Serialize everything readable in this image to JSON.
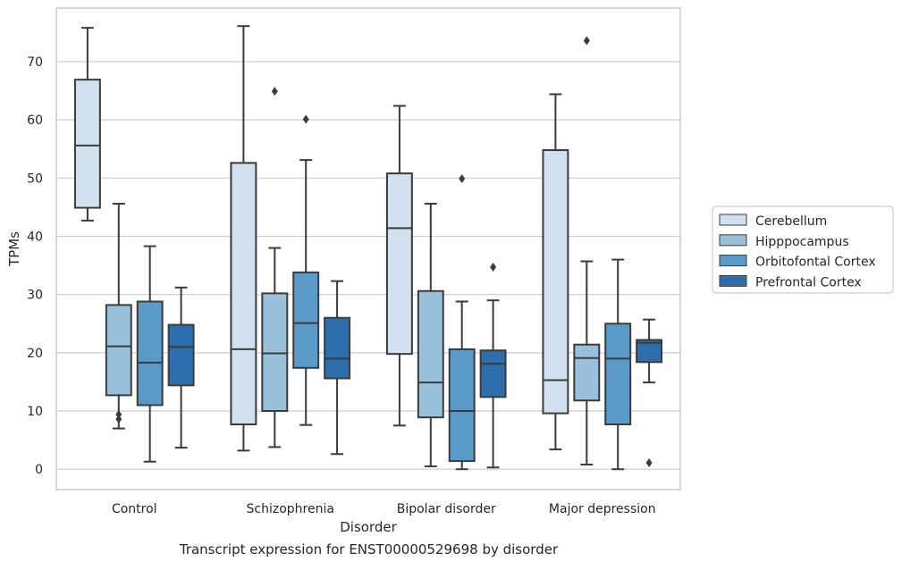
{
  "chart_data": {
    "type": "box",
    "caption": "Transcript expression for ENST00000529698 by disorder",
    "xlabel": "Disorder",
    "ylabel": "TPMs",
    "ylim": [
      -3.5,
      79.2
    ],
    "yticks": [
      0,
      10,
      20,
      30,
      40,
      50,
      60,
      70
    ],
    "grid": "horizontal",
    "legend_position": "right",
    "categories": [
      "Control",
      "Schizophrenia",
      "Bipolar disorder",
      "Major depression"
    ],
    "series": [
      {
        "name": "Cerebellum",
        "color": "#d1e1f0",
        "boxes": [
          {
            "whisker_low": 42.7,
            "q1": 44.9,
            "median": 55.6,
            "q3": 66.9,
            "whisker_high": 75.8,
            "outliers": []
          },
          {
            "whisker_low": 3.2,
            "q1": 7.7,
            "median": 20.6,
            "q3": 52.6,
            "whisker_high": 76.1,
            "outliers": []
          },
          {
            "whisker_low": 7.5,
            "q1": 19.8,
            "median": 41.4,
            "q3": 50.8,
            "whisker_high": 62.4,
            "outliers": []
          },
          {
            "whisker_low": 3.4,
            "q1": 9.6,
            "median": 15.3,
            "q3": 54.8,
            "whisker_high": 64.4,
            "outliers": []
          }
        ]
      },
      {
        "name": "Hipppocampus",
        "color": "#9ac1dc",
        "boxes": [
          {
            "whisker_low": 7.0,
            "q1": 12.7,
            "median": 21.1,
            "q3": 28.2,
            "whisker_high": 45.6,
            "outliers": [
              8.6,
              9.4
            ]
          },
          {
            "whisker_low": 3.8,
            "q1": 10.0,
            "median": 19.9,
            "q3": 30.2,
            "whisker_high": 38.0,
            "outliers": [
              64.9
            ]
          },
          {
            "whisker_low": 0.5,
            "q1": 8.9,
            "median": 14.9,
            "q3": 30.6,
            "whisker_high": 45.6,
            "outliers": []
          },
          {
            "whisker_low": 0.8,
            "q1": 11.8,
            "median": 19.1,
            "q3": 21.4,
            "whisker_high": 35.7,
            "outliers": [
              73.6
            ]
          }
        ]
      },
      {
        "name": "Orbitofontal Cortex",
        "color": "#5a9ac9",
        "boxes": [
          {
            "whisker_low": 1.3,
            "q1": 11.0,
            "median": 18.3,
            "q3": 28.8,
            "whisker_high": 38.3,
            "outliers": []
          },
          {
            "whisker_low": 7.6,
            "q1": 17.4,
            "median": 25.1,
            "q3": 33.8,
            "whisker_high": 53.1,
            "outliers": [
              60.1
            ]
          },
          {
            "whisker_low": 0.0,
            "q1": 1.4,
            "median": 10.0,
            "q3": 20.6,
            "whisker_high": 28.8,
            "outliers": [
              49.9
            ]
          },
          {
            "whisker_low": 0.0,
            "q1": 7.7,
            "median": 19.0,
            "q3": 25.0,
            "whisker_high": 36.0,
            "outliers": []
          }
        ]
      },
      {
        "name": "Prefrontal Cortex",
        "color": "#2d6ead",
        "boxes": [
          {
            "whisker_low": 3.7,
            "q1": 14.4,
            "median": 21.0,
            "q3": 24.8,
            "whisker_high": 31.2,
            "outliers": []
          },
          {
            "whisker_low": 2.6,
            "q1": 15.6,
            "median": 19.0,
            "q3": 26.0,
            "whisker_high": 32.3,
            "outliers": []
          },
          {
            "whisker_low": 0.3,
            "q1": 12.4,
            "median": 18.1,
            "q3": 20.4,
            "whisker_high": 29.0,
            "outliers": [
              34.7
            ]
          },
          {
            "whisker_low": 14.9,
            "q1": 18.4,
            "median": 21.7,
            "q3": 22.2,
            "whisker_high": 25.7,
            "outliers": [
              1.1
            ]
          }
        ]
      }
    ]
  }
}
